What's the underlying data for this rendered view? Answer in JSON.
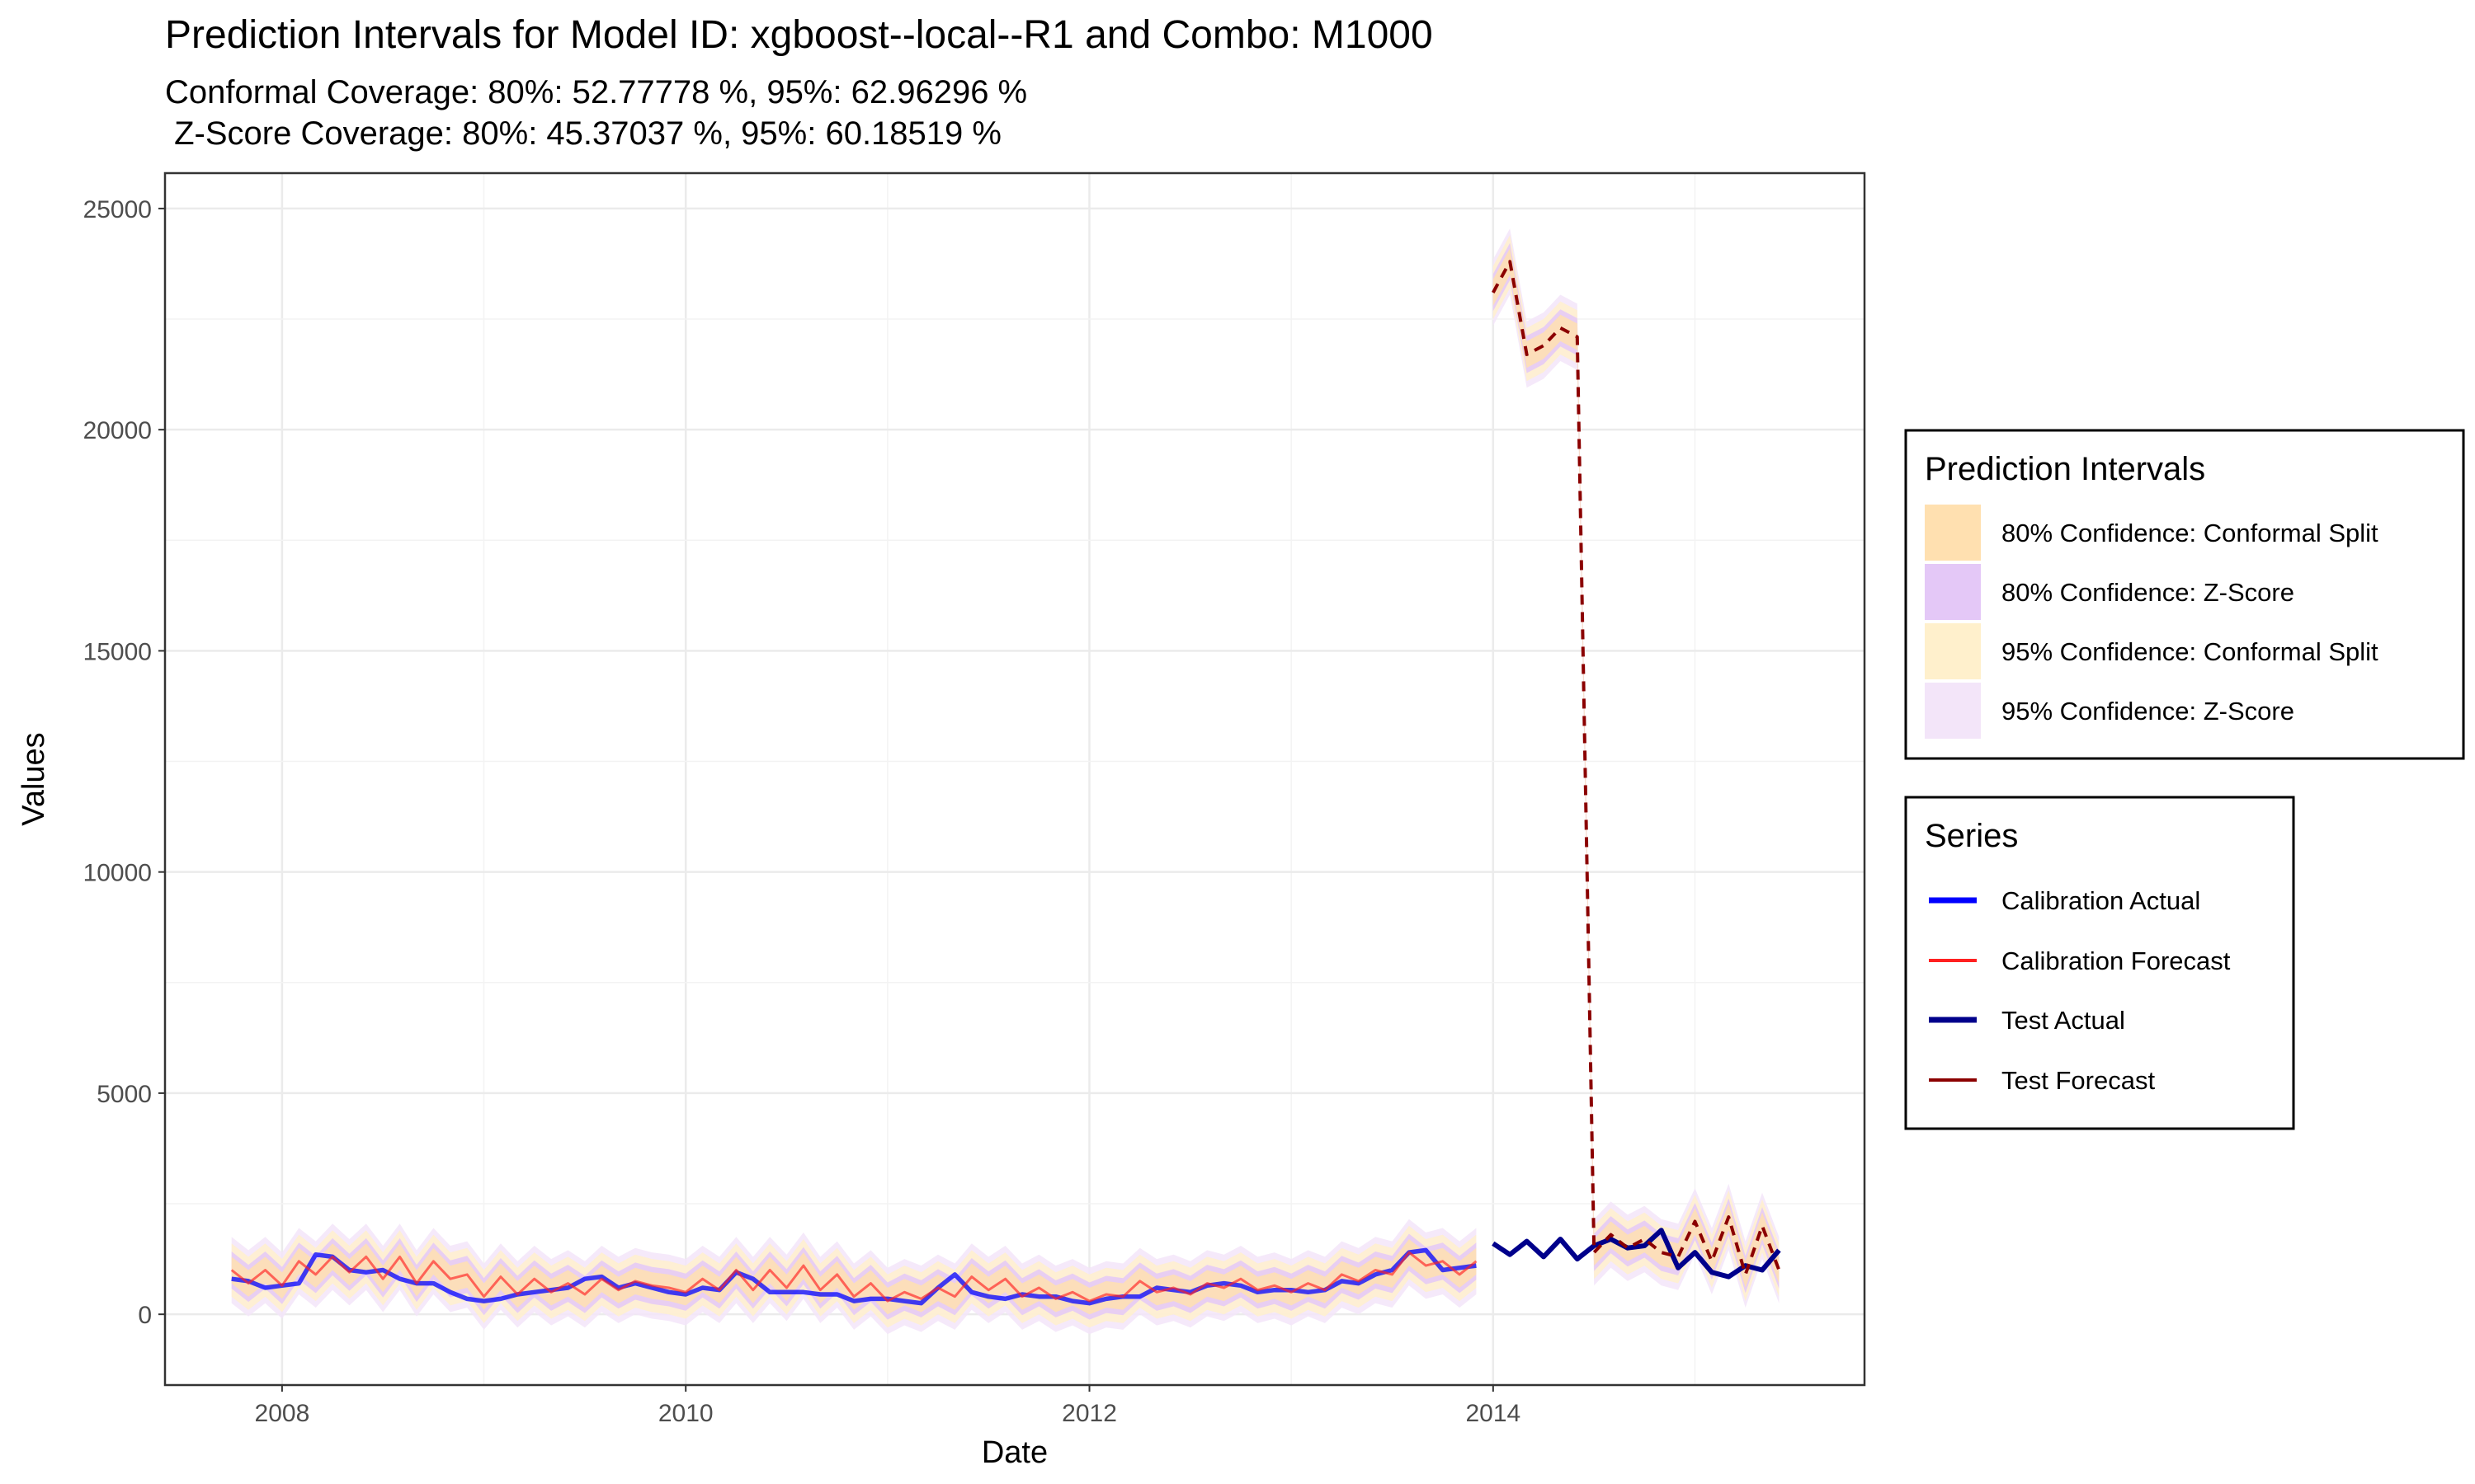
{
  "chart_data": {
    "type": "line",
    "title": "Prediction Intervals for Model ID: xgboost--local--R1 and Combo: M1000",
    "subtitle_line1": "Conformal Coverage: 80%: 52.77778 %, 95%: 62.96296 %",
    "subtitle_line2": " Z-Score Coverage: 80%: 45.37037 %, 95%: 60.18519 %",
    "xlabel": "Date",
    "ylabel": "Values",
    "xlim": [
      2007.42,
      2015.84
    ],
    "ylim": [
      -1600,
      25800
    ],
    "xticks": [
      2008,
      2010,
      2012,
      2014
    ],
    "yticks": [
      0,
      5000,
      10000,
      15000,
      20000,
      25000
    ],
    "grid": true,
    "legends": {
      "intervals": {
        "title": "Prediction Intervals",
        "position": "right",
        "items": [
          {
            "label": "80% Confidence: Conformal Split",
            "color": "#FFE0B0"
          },
          {
            "label": "80% Confidence: Z-Score",
            "color": "#E4C8F7"
          },
          {
            "label": "95% Confidence: Conformal Split",
            "color": "#FFF0CC"
          },
          {
            "label": "95% Confidence: Z-Score",
            "color": "#F3E5F9"
          }
        ]
      },
      "series": {
        "title": "Series",
        "position": "right",
        "items": [
          {
            "label": "Calibration Actual",
            "color": "#0000FF",
            "style": "solid-thick"
          },
          {
            "label": "Calibration Forecast",
            "color": "#FF2020",
            "style": "solid"
          },
          {
            "label": "Test Actual",
            "color": "#00008B",
            "style": "solid-thick"
          },
          {
            "label": "Test Forecast",
            "color": "#8B0000",
            "style": "solid"
          }
        ]
      }
    },
    "series": [
      {
        "name": "Calibration Actual",
        "color": "#0000FF",
        "x": [
          "2007-10",
          "2007-11",
          "2007-12",
          "2008-01",
          "2008-02",
          "2008-03",
          "2008-04",
          "2008-05",
          "2008-06",
          "2008-07",
          "2008-08",
          "2008-09",
          "2008-10",
          "2008-11",
          "2008-12",
          "2009-01",
          "2009-02",
          "2009-03",
          "2009-04",
          "2009-05",
          "2009-06",
          "2009-07",
          "2009-08",
          "2009-09",
          "2009-10",
          "2009-11",
          "2009-12",
          "2010-01",
          "2010-02",
          "2010-03",
          "2010-04",
          "2010-05",
          "2010-06",
          "2010-07",
          "2010-08",
          "2010-09",
          "2010-10",
          "2010-11",
          "2010-12",
          "2011-01",
          "2011-02",
          "2011-03",
          "2011-04",
          "2011-05",
          "2011-06",
          "2011-07",
          "2011-08",
          "2011-09",
          "2011-10",
          "2011-11",
          "2011-12",
          "2012-01",
          "2012-02",
          "2012-03",
          "2012-04",
          "2012-05",
          "2012-06",
          "2012-07",
          "2012-08",
          "2012-09",
          "2012-10",
          "2012-11",
          "2012-12",
          "2013-01",
          "2013-02",
          "2013-03",
          "2013-04",
          "2013-05",
          "2013-06",
          "2013-07",
          "2013-08",
          "2013-09",
          "2013-10",
          "2013-11",
          "2013-12"
        ],
        "y": [
          800,
          750,
          600,
          650,
          700,
          1350,
          1300,
          1000,
          950,
          1000,
          800,
          700,
          700,
          500,
          350,
          300,
          350,
          450,
          500,
          550,
          600,
          800,
          850,
          600,
          700,
          600,
          500,
          450,
          600,
          550,
          950,
          800,
          500,
          500,
          500,
          450,
          450,
          300,
          350,
          350,
          300,
          250,
          600,
          900,
          500,
          400,
          350,
          450,
          400,
          400,
          300,
          250,
          350,
          400,
          400,
          600,
          550,
          500,
          650,
          700,
          650,
          500,
          550,
          550,
          500,
          550,
          750,
          700,
          900,
          1000,
          1400,
          1450,
          1000,
          1050,
          1100
        ]
      },
      {
        "name": "Calibration Forecast",
        "color": "#FF2020",
        "x": [
          "2007-10",
          "2007-11",
          "2007-12",
          "2008-01",
          "2008-02",
          "2008-03",
          "2008-04",
          "2008-05",
          "2008-06",
          "2008-07",
          "2008-08",
          "2008-09",
          "2008-10",
          "2008-11",
          "2008-12",
          "2009-01",
          "2009-02",
          "2009-03",
          "2009-04",
          "2009-05",
          "2009-06",
          "2009-07",
          "2009-08",
          "2009-09",
          "2009-10",
          "2009-11",
          "2009-12",
          "2010-01",
          "2010-02",
          "2010-03",
          "2010-04",
          "2010-05",
          "2010-06",
          "2010-07",
          "2010-08",
          "2010-09",
          "2010-10",
          "2010-11",
          "2010-12",
          "2011-01",
          "2011-02",
          "2011-03",
          "2011-04",
          "2011-05",
          "2011-06",
          "2011-07",
          "2011-08",
          "2011-09",
          "2011-10",
          "2011-11",
          "2011-12",
          "2012-01",
          "2012-02",
          "2012-03",
          "2012-04",
          "2012-05",
          "2012-06",
          "2012-07",
          "2012-08",
          "2012-09",
          "2012-10",
          "2012-11",
          "2012-12",
          "2013-01",
          "2013-02",
          "2013-03",
          "2013-04",
          "2013-05",
          "2013-06",
          "2013-07",
          "2013-08",
          "2013-09",
          "2013-10",
          "2013-11",
          "2013-12"
        ],
        "y": [
          1000,
          700,
          1000,
          650,
          1200,
          900,
          1300,
          950,
          1300,
          800,
          1300,
          700,
          1200,
          800,
          900,
          400,
          850,
          450,
          800,
          500,
          700,
          450,
          800,
          550,
          750,
          650,
          600,
          500,
          800,
          550,
          1000,
          550,
          1000,
          600,
          1100,
          550,
          900,
          400,
          700,
          300,
          500,
          350,
          600,
          400,
          850,
          550,
          800,
          400,
          600,
          350,
          500,
          300,
          450,
          400,
          750,
          500,
          600,
          450,
          700,
          600,
          800,
          550,
          650,
          500,
          700,
          550,
          900,
          750,
          1000,
          900,
          1400,
          1100,
          1200,
          900,
          1200
        ]
      },
      {
        "name": "Test Actual",
        "color": "#00008B",
        "x": [
          "2014-01",
          "2014-02",
          "2014-03",
          "2014-04",
          "2014-05",
          "2014-06",
          "2014-07",
          "2014-08",
          "2014-09",
          "2014-10",
          "2014-11",
          "2014-12",
          "2015-01",
          "2015-02",
          "2015-03",
          "2015-04",
          "2015-05",
          "2015-06"
        ],
        "y": [
          1600,
          1350,
          1650,
          1300,
          1700,
          1250,
          1550,
          1700,
          1500,
          1550,
          1900,
          1050,
          1400,
          950,
          850,
          1100,
          1000,
          1450
        ]
      },
      {
        "name": "Test Forecast",
        "color": "#8B0000",
        "x": [
          "2014-01",
          "2014-02",
          "2014-03",
          "2014-04",
          "2014-05",
          "2014-06",
          "2014-07",
          "2014-08",
          "2014-09",
          "2014-10",
          "2014-11",
          "2014-12",
          "2015-01",
          "2015-02",
          "2015-03",
          "2015-04",
          "2015-05",
          "2015-06"
        ],
        "y": [
          23100,
          23800,
          21700,
          21900,
          22300,
          22100,
          1400,
          1800,
          1500,
          1700,
          1400,
          1300,
          2100,
          1200,
          2200,
          900,
          2000,
          1000
        ]
      }
    ],
    "interval_halfwidths": {
      "95% Confidence: Z-Score": 750,
      "95% Confidence: Conformal Split": 600,
      "80% Confidence: Z-Score": 420,
      "80% Confidence: Conformal Split": 300
    }
  }
}
